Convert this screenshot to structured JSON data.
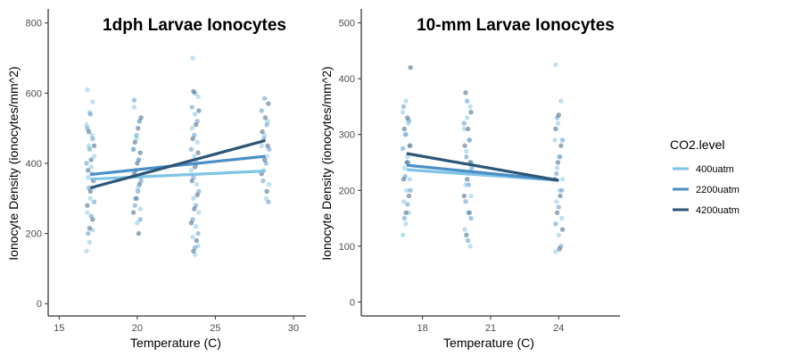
{
  "legend": {
    "title": "CO2.level",
    "entries": [
      {
        "label": "400uatm",
        "color": "#7fc4e6"
      },
      {
        "label": "2200uatm",
        "color": "#4b8fc7"
      },
      {
        "label": "4200uatm",
        "color": "#2c5577"
      }
    ]
  },
  "chart_data": [
    {
      "type": "scatter",
      "title": "1dph Larvae Ionocytes",
      "xlabel": "Temperature (C)",
      "ylabel": "Ionocyte Density (ionocytes/mm^2)",
      "xlim": [
        14.3,
        30.8
      ],
      "ylim": [
        -35,
        840
      ],
      "xticks": [
        15,
        20,
        25,
        30
      ],
      "yticks": [
        0,
        200,
        400,
        600,
        800
      ],
      "grid": false,
      "legend_position": "right",
      "temperature_groups": [
        17,
        20,
        23.7,
        28.2
      ],
      "series": [
        {
          "name": "400uatm",
          "color": "#7fc4e6",
          "fit_line": {
            "x": [
              17,
              28.2
            ],
            "y": [
              355,
              378
            ]
          },
          "points": [
            [
              17,
              150
            ],
            [
              17,
              175
            ],
            [
              17,
              210
            ],
            [
              17,
              260
            ],
            [
              17,
              300
            ],
            [
              17,
              330
            ],
            [
              17,
              360
            ],
            [
              17,
              390
            ],
            [
              17,
              420
            ],
            [
              17,
              450
            ],
            [
              17,
              480
            ],
            [
              17,
              510
            ],
            [
              17,
              545
            ],
            [
              17,
              575
            ],
            [
              17,
              610
            ],
            [
              20,
              230
            ],
            [
              20,
              270
            ],
            [
              20,
              300
            ],
            [
              20,
              330
            ],
            [
              20,
              360
            ],
            [
              20,
              380
            ],
            [
              20,
              410
            ],
            [
              20,
              440
            ],
            [
              20,
              470
            ],
            [
              20,
              520
            ],
            [
              20,
              560
            ],
            [
              23.7,
              140
            ],
            [
              23.7,
              165
            ],
            [
              23.7,
              190
            ],
            [
              23.7,
              220
            ],
            [
              23.7,
              260
            ],
            [
              23.7,
              300
            ],
            [
              23.7,
              340
            ],
            [
              23.7,
              380
            ],
            [
              23.7,
              420
            ],
            [
              23.7,
              460
            ],
            [
              23.7,
              500
            ],
            [
              23.7,
              540
            ],
            [
              23.7,
              590
            ],
            [
              23.7,
              700
            ],
            [
              28.2,
              300
            ],
            [
              28.2,
              340
            ],
            [
              28.2,
              380
            ],
            [
              28.2,
              420
            ],
            [
              28.2,
              450
            ],
            [
              28.2,
              480
            ],
            [
              28.2,
              520
            ]
          ]
        },
        {
          "name": "2200uatm",
          "color": "#4b8fc7",
          "fit_line": {
            "x": [
              17,
              28.2
            ],
            "y": [
              368,
              420
            ]
          },
          "points": [
            [
              17,
              200
            ],
            [
              17,
              250
            ],
            [
              17,
              290
            ],
            [
              17,
              330
            ],
            [
              17,
              370
            ],
            [
              17,
              400
            ],
            [
              17,
              440
            ],
            [
              17,
              470
            ],
            [
              17,
              500
            ],
            [
              17,
              540
            ],
            [
              20,
              240
            ],
            [
              20,
              280
            ],
            [
              20,
              320
            ],
            [
              20,
              350
            ],
            [
              20,
              380
            ],
            [
              20,
              410
            ],
            [
              20,
              440
            ],
            [
              20,
              480
            ],
            [
              20,
              520
            ],
            [
              20,
              580
            ],
            [
              23.7,
              160
            ],
            [
              23.7,
              200
            ],
            [
              23.7,
              240
            ],
            [
              23.7,
              280
            ],
            [
              23.7,
              320
            ],
            [
              23.7,
              360
            ],
            [
              23.7,
              400
            ],
            [
              23.7,
              440
            ],
            [
              23.7,
              480
            ],
            [
              23.7,
              520
            ],
            [
              23.7,
              560
            ],
            [
              23.7,
              600
            ],
            [
              28.2,
              290
            ],
            [
              28.2,
              350
            ],
            [
              28.2,
              400
            ],
            [
              28.2,
              440
            ],
            [
              28.2,
              470
            ],
            [
              28.2,
              510
            ],
            [
              28.2,
              550
            ],
            [
              28.2,
              585
            ]
          ]
        },
        {
          "name": "4200uatm",
          "color": "#2c5577",
          "fit_line": {
            "x": [
              17,
              28.2
            ],
            "y": [
              330,
              465
            ]
          },
          "points": [
            [
              17,
              215
            ],
            [
              17,
              240
            ],
            [
              17,
              280
            ],
            [
              17,
              320
            ],
            [
              17,
              350
            ],
            [
              17,
              380
            ],
            [
              17,
              410
            ],
            [
              17,
              450
            ],
            [
              17,
              490
            ],
            [
              20,
              200
            ],
            [
              20,
              260
            ],
            [
              20,
              300
            ],
            [
              20,
              340
            ],
            [
              20,
              370
            ],
            [
              20,
              400
            ],
            [
              20,
              430
            ],
            [
              20,
              460
            ],
            [
              20,
              500
            ],
            [
              20,
              530
            ],
            [
              23.7,
              150
            ],
            [
              23.7,
              180
            ],
            [
              23.7,
              230
            ],
            [
              23.7,
              270
            ],
            [
              23.7,
              310
            ],
            [
              23.7,
              350
            ],
            [
              23.7,
              390
            ],
            [
              23.7,
              430
            ],
            [
              23.7,
              470
            ],
            [
              23.7,
              510
            ],
            [
              23.7,
              550
            ],
            [
              23.7,
              605
            ],
            [
              28.2,
              320
            ],
            [
              28.2,
              370
            ],
            [
              28.2,
              410
            ],
            [
              28.2,
              450
            ],
            [
              28.2,
              490
            ],
            [
              28.2,
              530
            ],
            [
              28.2,
              570
            ]
          ]
        }
      ]
    },
    {
      "type": "scatter",
      "title": "10-mm Larvae Ionocytes",
      "xlabel": "Temperature (C)",
      "ylabel": "Ionocyte Density (ionocytes/mm^2)",
      "xlim": [
        15.3,
        26.7
      ],
      "ylim": [
        -25,
        525
      ],
      "xticks": [
        18,
        21,
        24
      ],
      "yticks": [
        0,
        100,
        200,
        300,
        400,
        500
      ],
      "grid": false,
      "legend_position": "right",
      "temperature_groups": [
        17.3,
        20,
        24
      ],
      "series": [
        {
          "name": "400uatm",
          "color": "#7fc4e6",
          "fit_line": {
            "x": [
              17.3,
              24
            ],
            "y": [
              237,
              218
            ]
          },
          "points": [
            [
              17.3,
              120
            ],
            [
              17.3,
              140
            ],
            [
              17.3,
              160
            ],
            [
              17.3,
              180
            ],
            [
              17.3,
              200
            ],
            [
              17.3,
              220
            ],
            [
              17.3,
              240
            ],
            [
              17.3,
              260
            ],
            [
              17.3,
              280
            ],
            [
              17.3,
              300
            ],
            [
              17.3,
              320
            ],
            [
              17.3,
              340
            ],
            [
              17.3,
              360
            ],
            [
              20,
              100
            ],
            [
              20,
              130
            ],
            [
              20,
              160
            ],
            [
              20,
              190
            ],
            [
              20,
              210
            ],
            [
              20,
              230
            ],
            [
              20,
              250
            ],
            [
              20,
              270
            ],
            [
              20,
              290
            ],
            [
              20,
              310
            ],
            [
              20,
              330
            ],
            [
              20,
              350
            ],
            [
              24,
              90
            ],
            [
              24,
              120
            ],
            [
              24,
              150
            ],
            [
              24,
              180
            ],
            [
              24,
              200
            ],
            [
              24,
              220
            ],
            [
              24,
              240
            ],
            [
              24,
              260
            ],
            [
              24,
              290
            ],
            [
              24,
              320
            ],
            [
              24,
              360
            ],
            [
              24,
              425
            ]
          ]
        },
        {
          "name": "2200uatm",
          "color": "#4b8fc7",
          "fit_line": {
            "x": [
              17.3,
              24
            ],
            "y": [
              245,
              218
            ]
          },
          "points": [
            [
              17.3,
              150
            ],
            [
              17.3,
              175
            ],
            [
              17.3,
              200
            ],
            [
              17.3,
              225
            ],
            [
              17.3,
              250
            ],
            [
              17.3,
              275
            ],
            [
              17.3,
              300
            ],
            [
              17.3,
              325
            ],
            [
              17.3,
              350
            ],
            [
              20,
              110
            ],
            [
              20,
              150
            ],
            [
              20,
              180
            ],
            [
              20,
              210
            ],
            [
              20,
              240
            ],
            [
              20,
              260
            ],
            [
              20,
              290
            ],
            [
              20,
              320
            ],
            [
              20,
              360
            ],
            [
              24,
              100
            ],
            [
              24,
              140
            ],
            [
              24,
              170
            ],
            [
              24,
              200
            ],
            [
              24,
              230
            ],
            [
              24,
              260
            ],
            [
              24,
              290
            ],
            [
              24,
              330
            ]
          ]
        },
        {
          "name": "4200uatm",
          "color": "#2c5577",
          "fit_line": {
            "x": [
              17.3,
              24
            ],
            "y": [
              266,
              218
            ]
          },
          "points": [
            [
              17.3,
              160
            ],
            [
              17.3,
              190
            ],
            [
              17.3,
              220
            ],
            [
              17.3,
              250
            ],
            [
              17.3,
              280
            ],
            [
              17.3,
              310
            ],
            [
              17.3,
              330
            ],
            [
              17.3,
              420
            ],
            [
              20,
              120
            ],
            [
              20,
              160
            ],
            [
              20,
              190
            ],
            [
              20,
              220
            ],
            [
              20,
              250
            ],
            [
              20,
              280
            ],
            [
              20,
              310
            ],
            [
              20,
              340
            ],
            [
              20,
              375
            ],
            [
              24,
              95
            ],
            [
              24,
              130
            ],
            [
              24,
              160
            ],
            [
              24,
              190
            ],
            [
              24,
              220
            ],
            [
              24,
              250
            ],
            [
              24,
              280
            ],
            [
              24,
              310
            ],
            [
              24,
              335
            ]
          ]
        }
      ]
    }
  ]
}
